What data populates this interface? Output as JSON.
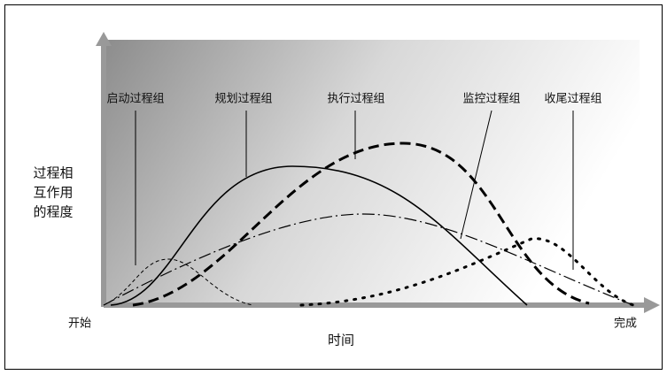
{
  "labels": {
    "initiating": "启动过程组",
    "planning": "规划过程组",
    "executing": "执行过程组",
    "monitoring": "监控过程组",
    "closing": "收尾过程组"
  },
  "y_axis": {
    "lines": [
      "过程相",
      "互作用",
      "的程度"
    ]
  },
  "x_axis": {
    "title": "时间",
    "start": "开始",
    "end": "完成"
  }
}
